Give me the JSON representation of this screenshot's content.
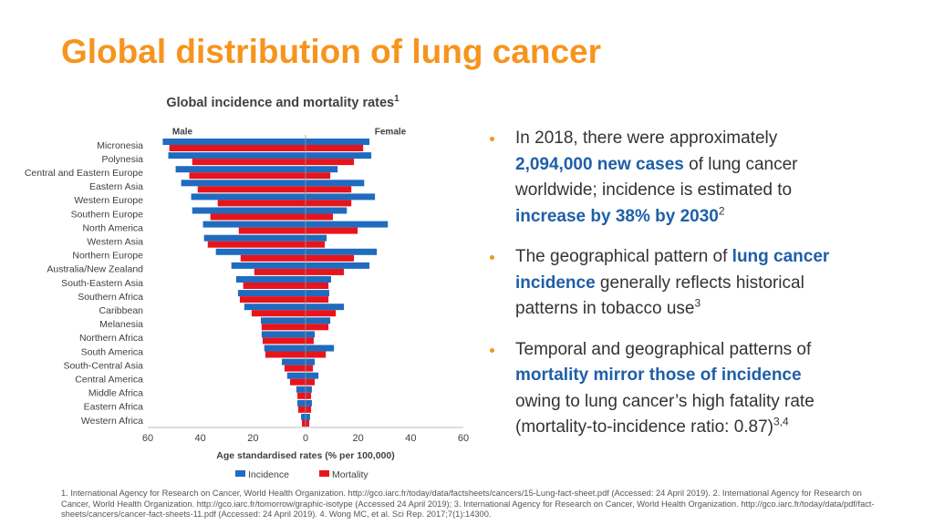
{
  "slide": {
    "title": "Global distribution of lung cancer",
    "bullets": [
      [
        {
          "text": "In 2018, there were approximately "
        },
        {
          "text": "2,094,000 new cases",
          "highlight": true
        },
        {
          "text": " of lung cancer worldwide; incidence is estimated to "
        },
        {
          "text": "increase by 38% by 2030",
          "highlight": true
        },
        {
          "text": "2",
          "sup": true
        }
      ],
      [
        {
          "text": "The geographical pattern of "
        },
        {
          "text": "lung cancer incidence",
          "highlight": true
        },
        {
          "text": " generally reflects historical patterns in tobacco use"
        },
        {
          "text": "3",
          "sup": true
        }
      ],
      [
        {
          "text": "Temporal and geographical patterns of "
        },
        {
          "text": "mortality mirror those of incidence",
          "highlight": true
        },
        {
          "text": " owing to lung cancer’s high fatality rate (mortality-to-incidence ratio: 0.87)"
        },
        {
          "text": "3,4",
          "sup": true
        }
      ]
    ],
    "footnote": "1. International Agency for Research on Cancer, World Health Organization. http://gco.iarc.fr/today/data/factsheets/cancers/15-Lung-fact-sheet.pdf (Accessed: 24 April 2019). 2. International Agency for Research on Cancer, World Health Organization. http://gco.iarc.fr/tomorrow/graphic-isotype (Accessed 24 April 2019); 3. International Agency for Research on Cancer, World Health Organization. http://gco.iarc.fr/today/data/pdf/fact-sheets/cancers/cancer-fact-sheets-11.pdf (Accessed: 24 April 2019). 4. Wong MC, et al. Sci Rep. 2017;7(1):14300."
  },
  "chart_data": {
    "type": "pyramid",
    "title": "Global incidence and mortality rates",
    "title_sup": "1",
    "x_label": "Age standardised rates (% per 100,000)",
    "categories": [
      "Micronesia",
      "Polynesia",
      "Central and Eastern Europe",
      "Eastern Asia",
      "Western Europe",
      "Southern Europe",
      "North America",
      "Western Asia",
      "Northern Europe",
      "Australia/New Zealand",
      "South-Eastern Asia",
      "Southern Africa",
      "Caribbean",
      "Melanesia",
      "Northern Africa",
      "South America",
      "South-Central Asia",
      "Central America",
      "Middle Africa",
      "Eastern Africa",
      "Western Africa"
    ],
    "legend": [
      {
        "name": "Incidence",
        "color": "#1f6bbf"
      },
      {
        "name": "Mortality",
        "color": "#e8141c"
      }
    ],
    "sides": [
      {
        "name": "Male",
        "direction": -1,
        "series": [
          [
            54.3,
            52.2,
            49.4,
            47.3,
            43.5,
            43.1,
            39.0,
            38.6,
            34.1,
            28.2,
            26.4,
            25.7,
            23.3,
            17.0,
            16.7,
            15.7,
            9.0,
            7.0,
            3.5,
            3.1,
            1.7
          ],
          [
            51.8,
            43.1,
            44.2,
            41.0,
            33.4,
            36.2,
            25.4,
            37.2,
            24.7,
            19.5,
            23.7,
            25.0,
            20.5,
            16.7,
            16.3,
            15.3,
            8.0,
            5.9,
            3.1,
            2.8,
            1.4
          ]
        ]
      },
      {
        "name": "Female",
        "direction": 1,
        "series": [
          [
            24.3,
            25.0,
            12.2,
            22.3,
            26.4,
            15.7,
            31.3,
            8.0,
            27.1,
            24.3,
            9.7,
            9.0,
            14.6,
            9.4,
            3.5,
            10.8,
            3.5,
            4.9,
            2.4,
            2.4,
            1.7
          ],
          [
            21.9,
            18.4,
            9.4,
            17.4,
            17.4,
            10.4,
            19.8,
            7.3,
            18.4,
            14.6,
            8.7,
            8.7,
            11.5,
            8.7,
            3.1,
            7.7,
            2.8,
            3.5,
            2.1,
            2.1,
            1.4
          ]
        ]
      }
    ],
    "xlim": [
      -60,
      60
    ],
    "xticks": [
      {
        "value": -60,
        "label": "60"
      },
      {
        "value": -40,
        "label": "40"
      },
      {
        "value": -20,
        "label": "20"
      },
      0,
      20,
      40,
      60
    ]
  }
}
